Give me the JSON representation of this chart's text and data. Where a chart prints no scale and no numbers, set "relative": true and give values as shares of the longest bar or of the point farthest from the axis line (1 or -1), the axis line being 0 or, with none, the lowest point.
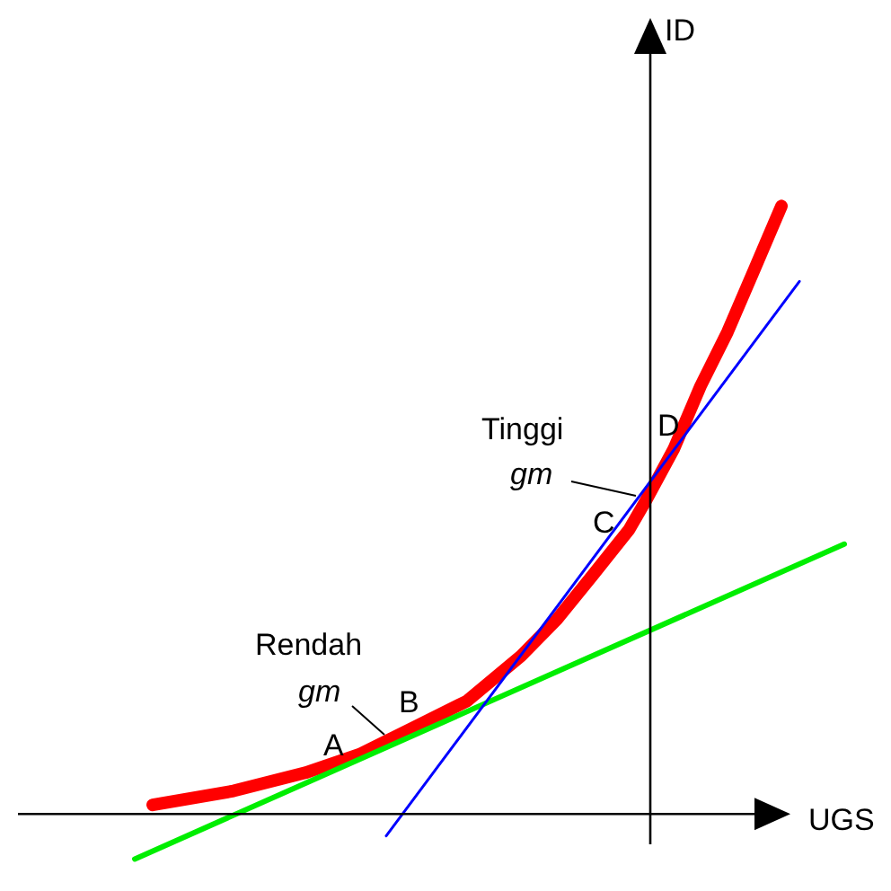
{
  "chart_data": {
    "type": "line",
    "relative": true,
    "xlabel": "UGS",
    "legend": false,
    "marker": "none",
    "categories": [
      null,
      null,
      null,
      null,
      null,
      null,
      null,
      null,
      null,
      null,
      null,
      null,
      null,
      null,
      null,
      null,
      null,
      null,
      null,
      null,
      null,
      null,
      null,
      null,
      null,
      null,
      null,
      null,
      null,
      null,
      null,
      null,
      null,
      null,
      null,
      null,
      null,
      null,
      null,
      null,
      null,
      null,
      null,
      null,
      null,
      null,
      null,
      null,
      null,
      null,
      null,
      null,
      null,
      null,
      null,
      null,
      null,
      null,
      null,
      null,
      null,
      null,
      null,
      null,
      null,
      null,
      null,
      null,
      null,
      null,
      null,
      null,
      null,
      null,
      null,
      null,
      null,
      null,
      null,
      null,
      null
    ],
    "series": [
      {
        "color": "#ff0000",
        "values": [
          null,
          null,
          null,
          0.015,
          null,
          null,
          null,
          null,
          null,
          null,
          null,
          null,
          0.038,
          null,
          null,
          null,
          null,
          null,
          null,
          null,
          0.068,
          null,
          null,
          null,
          null,
          null,
          0.098,
          null,
          null,
          null,
          null,
          null,
          0.142,
          null,
          null,
          null,
          null,
          null,
          0.186,
          null,
          null,
          null,
          null,
          null,
          0.26,
          null,
          null,
          null,
          0.32,
          null,
          null,
          null,
          0.393,
          null,
          null,
          null,
          0.467,
          null,
          0.518,
          null,
          null,
          0.6,
          null,
          null,
          0.704,
          null,
          null,
          0.793,
          null,
          null,
          0.896,
          null,
          null,
          1,
          null,
          null,
          null,
          null,
          null,
          null,
          null
        ]
      },
      {
        "color": "#00ee00",
        "values": [
          null,
          -0.074,
          null,
          null,
          null,
          null,
          null,
          null,
          null,
          null,
          null,
          null,
          null,
          null,
          null,
          null,
          null,
          null,
          null,
          null,
          null,
          null,
          null,
          null,
          null,
          null,
          null,
          null,
          null,
          null,
          null,
          null,
          null,
          null,
          null,
          null,
          null,
          null,
          null,
          null,
          null,
          null,
          null,
          null,
          null,
          null,
          null,
          null,
          null,
          null,
          null,
          null,
          null,
          null,
          null,
          null,
          null,
          null,
          null,
          null,
          null,
          null,
          null,
          null,
          null,
          null,
          null,
          null,
          null,
          null,
          null,
          null,
          null,
          null,
          null,
          null,
          null,
          null,
          null,
          null,
          0.444
        ]
      },
      {
        "color": "#0000ff",
        "values": [
          null,
          null,
          null,
          null,
          null,
          null,
          null,
          null,
          null,
          null,
          null,
          null,
          null,
          null,
          null,
          null,
          null,
          null,
          null,
          null,
          null,
          null,
          null,
          null,
          null,
          null,
          null,
          null,
          null,
          -0.036,
          null,
          null,
          null,
          null,
          null,
          null,
          null,
          null,
          null,
          null,
          null,
          null,
          null,
          null,
          null,
          null,
          null,
          null,
          null,
          null,
          null,
          null,
          null,
          null,
          null,
          null,
          null,
          null,
          null,
          null,
          null,
          null,
          null,
          null,
          null,
          null,
          null,
          null,
          null,
          null,
          null,
          null,
          null,
          null,
          null,
          0.876,
          null,
          null,
          null,
          null,
          null
        ]
      }
    ],
    "annotations": [
      "Tinggi",
      "gm",
      "C",
      "D",
      "Rendah",
      "gm",
      "A",
      "B",
      "ID"
    ]
  }
}
